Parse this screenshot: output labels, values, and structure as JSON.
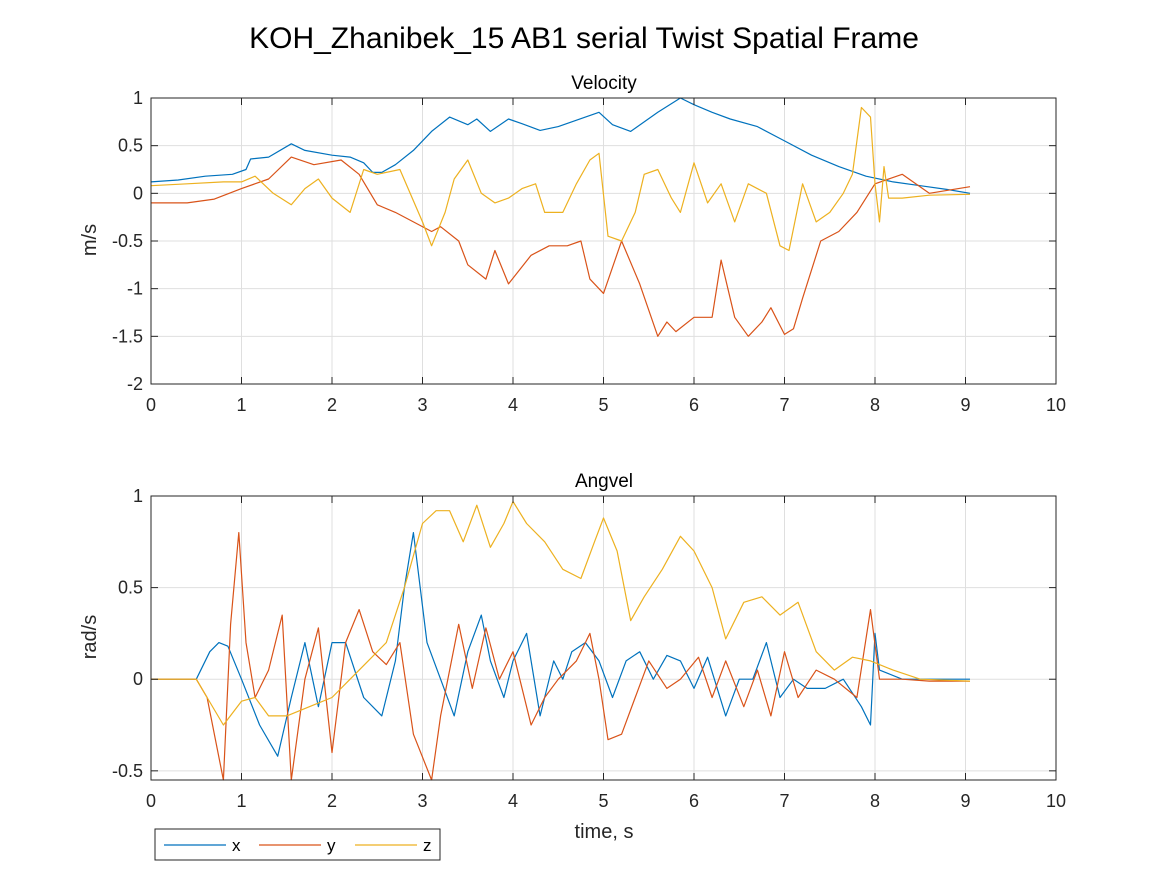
{
  "figure": {
    "title": "KOH_Zhanibek_15 AB1 serial Twist Spatial Frame"
  },
  "legend": {
    "entries": [
      {
        "label": "x",
        "color": "#0072BD"
      },
      {
        "label": "y",
        "color": "#D95319"
      },
      {
        "label": "z",
        "color": "#EDB120"
      }
    ],
    "placement": "bottom-left"
  },
  "chart_data": [
    {
      "type": "line",
      "title": "Velocity",
      "xlabel": "",
      "ylabel": "m/s",
      "xlim": [
        0,
        10
      ],
      "ylim": [
        -2,
        1
      ],
      "xticks": [
        0,
        1,
        2,
        3,
        4,
        5,
        6,
        7,
        8,
        9,
        10
      ],
      "yticks": [
        -2,
        -1.5,
        -1,
        -0.5,
        0,
        0.5,
        1
      ],
      "grid": true,
      "series": [
        {
          "name": "x",
          "color": "#0072BD",
          "x": [
            0,
            0.3,
            0.6,
            0.9,
            1.05,
            1.1,
            1.3,
            1.55,
            1.7,
            2.0,
            2.2,
            2.35,
            2.45,
            2.55,
            2.7,
            2.9,
            3.1,
            3.3,
            3.5,
            3.6,
            3.75,
            3.95,
            4.1,
            4.3,
            4.5,
            4.8,
            4.95,
            5.1,
            5.3,
            5.6,
            5.85,
            6.0,
            6.2,
            6.4,
            6.7,
            7.0,
            7.3,
            7.6,
            7.9,
            8.2,
            8.5,
            8.8,
            9.05
          ],
          "y": [
            0.12,
            0.14,
            0.18,
            0.2,
            0.25,
            0.36,
            0.38,
            0.52,
            0.45,
            0.4,
            0.38,
            0.32,
            0.22,
            0.22,
            0.3,
            0.45,
            0.65,
            0.8,
            0.72,
            0.78,
            0.65,
            0.78,
            0.73,
            0.66,
            0.7,
            0.8,
            0.85,
            0.72,
            0.65,
            0.85,
            1.0,
            0.93,
            0.85,
            0.78,
            0.7,
            0.55,
            0.4,
            0.28,
            0.18,
            0.12,
            0.08,
            0.04,
            0.0
          ]
        },
        {
          "name": "y",
          "color": "#D95319",
          "x": [
            0,
            0.4,
            0.7,
            1.0,
            1.3,
            1.55,
            1.8,
            2.1,
            2.3,
            2.5,
            2.7,
            2.9,
            3.1,
            3.2,
            3.4,
            3.5,
            3.7,
            3.8,
            3.95,
            4.2,
            4.4,
            4.6,
            4.75,
            4.85,
            5.0,
            5.2,
            5.4,
            5.6,
            5.7,
            5.8,
            6.0,
            6.2,
            6.3,
            6.45,
            6.6,
            6.75,
            6.85,
            7.0,
            7.1,
            7.2,
            7.4,
            7.6,
            7.8,
            8.0,
            8.3,
            8.6,
            9.05
          ],
          "y": [
            -0.1,
            -0.1,
            -0.06,
            0.05,
            0.15,
            0.38,
            0.3,
            0.35,
            0.2,
            -0.12,
            -0.2,
            -0.3,
            -0.4,
            -0.35,
            -0.5,
            -0.75,
            -0.9,
            -0.6,
            -0.95,
            -0.65,
            -0.55,
            -0.55,
            -0.5,
            -0.9,
            -1.05,
            -0.5,
            -0.95,
            -1.5,
            -1.35,
            -1.45,
            -1.3,
            -1.3,
            -0.7,
            -1.3,
            -1.5,
            -1.35,
            -1.2,
            -1.48,
            -1.42,
            -1.1,
            -0.5,
            -0.4,
            -0.2,
            0.1,
            0.2,
            0.0,
            0.07
          ]
        },
        {
          "name": "z",
          "color": "#EDB120",
          "x": [
            0,
            0.4,
            0.8,
            1.0,
            1.15,
            1.35,
            1.55,
            1.7,
            1.85,
            2.0,
            2.2,
            2.35,
            2.5,
            2.75,
            3.0,
            3.1,
            3.25,
            3.35,
            3.5,
            3.65,
            3.8,
            3.95,
            4.1,
            4.25,
            4.35,
            4.55,
            4.7,
            4.85,
            4.95,
            5.05,
            5.2,
            5.35,
            5.45,
            5.6,
            5.75,
            5.85,
            6.0,
            6.15,
            6.3,
            6.45,
            6.6,
            6.8,
            6.95,
            7.05,
            7.2,
            7.35,
            7.5,
            7.65,
            7.75,
            7.85,
            7.95,
            8.0,
            8.05,
            8.1,
            8.15,
            8.3,
            8.6,
            9.05
          ],
          "y": [
            0.08,
            0.1,
            0.12,
            0.12,
            0.18,
            0.0,
            -0.12,
            0.05,
            0.15,
            -0.05,
            -0.2,
            0.25,
            0.2,
            0.25,
            -0.3,
            -0.55,
            -0.2,
            0.15,
            0.35,
            0.0,
            -0.1,
            -0.05,
            0.05,
            0.1,
            -0.2,
            -0.2,
            0.1,
            0.35,
            0.42,
            -0.45,
            -0.5,
            -0.2,
            0.2,
            0.25,
            -0.05,
            -0.2,
            0.32,
            -0.1,
            0.1,
            -0.3,
            0.1,
            0.0,
            -0.55,
            -0.6,
            0.1,
            -0.3,
            -0.2,
            0.0,
            0.2,
            0.9,
            0.8,
            0.1,
            -0.3,
            0.28,
            -0.05,
            -0.05,
            -0.02,
            -0.01
          ]
        }
      ]
    },
    {
      "type": "line",
      "title": "Angvel",
      "xlabel": "time, s",
      "ylabel": "rad/s",
      "xlim": [
        0,
        10
      ],
      "ylim": [
        -0.55,
        1
      ],
      "xticks": [
        0,
        1,
        2,
        3,
        4,
        5,
        6,
        7,
        8,
        9,
        10
      ],
      "yticks": [
        -0.5,
        0,
        0.5,
        1
      ],
      "grid": true,
      "series": [
        {
          "name": "x",
          "color": "#0072BD",
          "x": [
            0,
            0.5,
            0.65,
            0.75,
            0.85,
            1.0,
            1.2,
            1.4,
            1.55,
            1.7,
            1.85,
            2.0,
            2.15,
            2.35,
            2.55,
            2.7,
            2.8,
            2.9,
            3.05,
            3.2,
            3.35,
            3.5,
            3.65,
            3.75,
            3.9,
            4.0,
            4.15,
            4.3,
            4.45,
            4.55,
            4.65,
            4.8,
            4.95,
            5.1,
            5.25,
            5.4,
            5.55,
            5.7,
            5.85,
            6.0,
            6.15,
            6.35,
            6.5,
            6.65,
            6.8,
            6.95,
            7.1,
            7.25,
            7.45,
            7.65,
            7.85,
            7.95,
            8.0,
            8.05,
            8.15,
            8.3,
            8.6,
            9.05
          ],
          "y": [
            0.0,
            0.0,
            0.15,
            0.2,
            0.18,
            0.0,
            -0.25,
            -0.42,
            -0.1,
            0.2,
            -0.15,
            0.2,
            0.2,
            -0.1,
            -0.2,
            0.1,
            0.5,
            0.8,
            0.2,
            0.0,
            -0.2,
            0.15,
            0.35,
            0.1,
            -0.1,
            0.1,
            0.25,
            -0.2,
            0.1,
            0.0,
            0.15,
            0.2,
            0.1,
            -0.1,
            0.1,
            0.15,
            0.0,
            0.13,
            0.1,
            -0.05,
            0.12,
            -0.2,
            0.0,
            0.0,
            0.2,
            -0.1,
            0.0,
            -0.05,
            -0.05,
            0.0,
            -0.15,
            -0.25,
            0.25,
            0.05,
            0.03,
            0.0,
            0.0,
            0.0
          ]
        },
        {
          "name": "y",
          "color": "#D95319",
          "x": [
            0,
            0.5,
            0.62,
            0.8,
            0.88,
            0.97,
            1.05,
            1.15,
            1.3,
            1.45,
            1.55,
            1.7,
            1.85,
            2.0,
            2.15,
            2.3,
            2.45,
            2.6,
            2.75,
            2.9,
            3.1,
            3.2,
            3.4,
            3.55,
            3.7,
            3.85,
            4.0,
            4.2,
            4.35,
            4.5,
            4.7,
            4.85,
            4.95,
            5.05,
            5.2,
            5.35,
            5.5,
            5.7,
            5.85,
            6.05,
            6.2,
            6.35,
            6.55,
            6.7,
            6.85,
            7.0,
            7.15,
            7.35,
            7.55,
            7.8,
            7.95,
            8.05,
            8.15,
            8.3,
            8.6,
            9.05
          ],
          "y": [
            0.0,
            0.0,
            -0.1,
            -0.55,
            0.3,
            0.8,
            0.2,
            -0.1,
            0.05,
            0.35,
            -0.55,
            0.0,
            0.28,
            -0.4,
            0.2,
            0.38,
            0.15,
            0.08,
            0.2,
            -0.3,
            -0.55,
            -0.2,
            0.3,
            -0.05,
            0.28,
            0.0,
            0.15,
            -0.25,
            -0.1,
            0.0,
            0.1,
            0.25,
            0.0,
            -0.33,
            -0.3,
            -0.1,
            0.1,
            -0.05,
            0.0,
            0.12,
            -0.1,
            0.1,
            -0.15,
            0.05,
            -0.2,
            0.15,
            -0.1,
            0.05,
            0.0,
            -0.1,
            0.38,
            0.0,
            0.0,
            0.0,
            -0.01,
            -0.01
          ]
        },
        {
          "name": "z",
          "color": "#EDB120",
          "x": [
            0,
            0.5,
            0.62,
            0.8,
            1.0,
            1.15,
            1.3,
            1.5,
            1.75,
            2.0,
            2.2,
            2.4,
            2.6,
            2.8,
            3.0,
            3.15,
            3.3,
            3.45,
            3.6,
            3.75,
            3.9,
            4.0,
            4.15,
            4.35,
            4.55,
            4.75,
            4.9,
            5.0,
            5.15,
            5.3,
            5.45,
            5.65,
            5.85,
            6.0,
            6.2,
            6.35,
            6.55,
            6.75,
            6.95,
            7.15,
            7.35,
            7.55,
            7.75,
            7.95,
            8.2,
            8.5,
            9.05
          ],
          "y": [
            0.0,
            0.0,
            -0.1,
            -0.25,
            -0.12,
            -0.1,
            -0.2,
            -0.2,
            -0.15,
            -0.1,
            0.0,
            0.1,
            0.2,
            0.5,
            0.85,
            0.92,
            0.92,
            0.75,
            0.95,
            0.72,
            0.85,
            0.97,
            0.85,
            0.75,
            0.6,
            0.55,
            0.75,
            0.88,
            0.7,
            0.32,
            0.45,
            0.6,
            0.78,
            0.7,
            0.5,
            0.22,
            0.42,
            0.45,
            0.35,
            0.42,
            0.15,
            0.05,
            0.12,
            0.1,
            0.05,
            0.0,
            -0.01
          ]
        }
      ]
    }
  ]
}
